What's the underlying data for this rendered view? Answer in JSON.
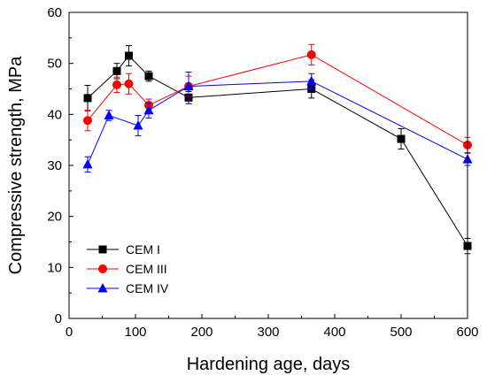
{
  "chart_data": {
    "type": "line",
    "xlabel": "Hardening age, days",
    "ylabel": "Compressive strength, MPa",
    "xlim": [
      0,
      600
    ],
    "ylim": [
      0,
      60
    ],
    "xticks": [
      0,
      100,
      200,
      300,
      400,
      500,
      600
    ],
    "yticks": [
      0,
      10,
      20,
      30,
      40,
      50,
      60
    ],
    "grid": false,
    "legend_position": "bottom-left",
    "series": [
      {
        "name": "CEM I",
        "color": "#000000",
        "marker": "square",
        "x": [
          28,
          72,
          90,
          120,
          180,
          365,
          500,
          600
        ],
        "y": [
          43.2,
          48.5,
          51.5,
          47.5,
          43.3,
          45.0,
          35.2,
          14.2
        ],
        "err": [
          2.5,
          1.5,
          2.0,
          1.0,
          1.2,
          1.8,
          2.0,
          1.5
        ]
      },
      {
        "name": "CEM III",
        "color": "#ff0000",
        "marker": "circle",
        "x": [
          28,
          72,
          90,
          120,
          180,
          365,
          600
        ],
        "y": [
          38.8,
          45.8,
          46.0,
          41.8,
          45.5,
          51.7,
          34.0
        ],
        "err": [
          2.0,
          1.5,
          2.0,
          1.2,
          2.0,
          2.0,
          1.5
        ]
      },
      {
        "name": "CEM IV",
        "color": "#0000ff",
        "marker": "triangle",
        "x": [
          28,
          60,
          104,
          120,
          180,
          365,
          600
        ],
        "y": [
          30.2,
          39.8,
          37.8,
          40.8,
          45.5,
          46.5,
          31.2
        ],
        "err": [
          1.5,
          1.0,
          2.0,
          1.5,
          2.8,
          1.5,
          1.2
        ]
      }
    ]
  }
}
